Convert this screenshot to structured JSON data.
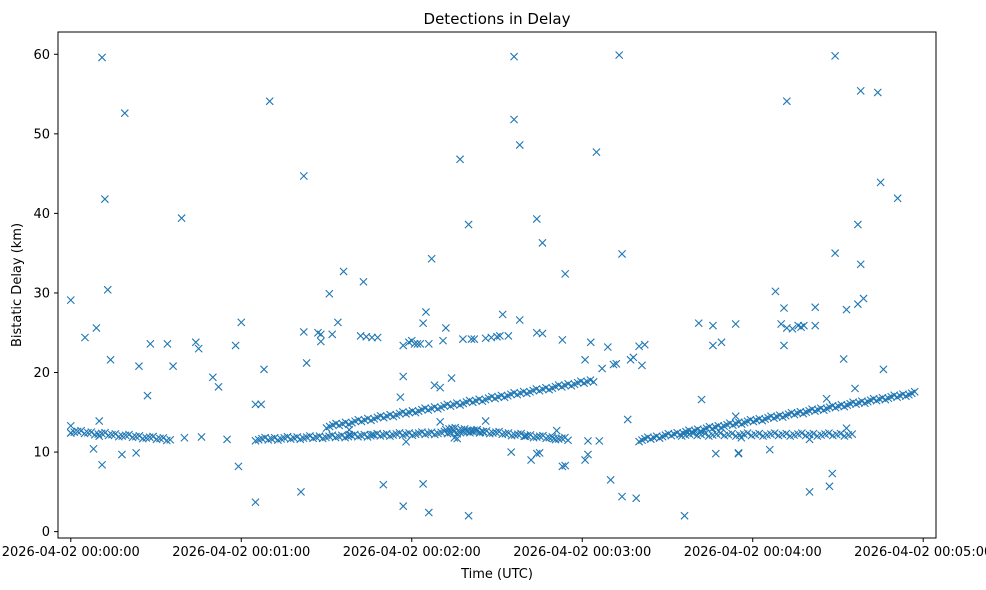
{
  "chart_data": {
    "type": "scatter",
    "title": "Detections in Delay",
    "xlabel": "Time (UTC)",
    "ylabel": "Bistatic Delay (km)",
    "x_unit": "seconds since 2026-04-02 00:00:00",
    "xlim": [
      -4.5,
      304.5
    ],
    "ylim": [
      -0.8,
      62.8
    ],
    "x_ticks": [
      {
        "value": 0,
        "label": "2026-04-02 00:00:00"
      },
      {
        "value": 60,
        "label": "2026-04-02 00:01:00"
      },
      {
        "value": 120,
        "label": "2026-04-02 00:02:00"
      },
      {
        "value": 180,
        "label": "2026-04-02 00:03:00"
      },
      {
        "value": 240,
        "label": "2026-04-02 00:04:00"
      },
      {
        "value": 300,
        "label": "2026-04-02 00:05:00"
      }
    ],
    "y_ticks": [
      {
        "value": 0,
        "label": "0"
      },
      {
        "value": 10,
        "label": "10"
      },
      {
        "value": 20,
        "label": "20"
      },
      {
        "value": 30,
        "label": "30"
      },
      {
        "value": 40,
        "label": "40"
      },
      {
        "value": 50,
        "label": "50"
      },
      {
        "value": 60,
        "label": "60"
      }
    ],
    "marker": "x",
    "color": "#1f77b4",
    "grid": false,
    "track_segments": [
      {
        "name": "track-a",
        "x": [
          0,
          35
        ],
        "y": [
          12.6,
          11.6
        ],
        "count": 30
      },
      {
        "name": "track-b",
        "x": [
          65,
          145
        ],
        "y": [
          11.6,
          12.6
        ],
        "count": 72
      },
      {
        "name": "track-c",
        "x": [
          90,
          184
        ],
        "y": [
          13.2,
          19.0
        ],
        "count": 85
      },
      {
        "name": "track-d",
        "x": [
          132,
          175
        ],
        "y": [
          13.0,
          11.6
        ],
        "count": 40
      },
      {
        "name": "track-e",
        "x": [
          200,
          297
        ],
        "y": [
          11.5,
          17.4
        ],
        "count": 95
      },
      {
        "name": "track-f",
        "x": [
          215,
          275
        ],
        "y": [
          12.2,
          12.2
        ],
        "count": 45
      }
    ],
    "points": [
      [
        0,
        29.1
      ],
      [
        0,
        13.3
      ],
      [
        0,
        12.4
      ],
      [
        5,
        24.4
      ],
      [
        8,
        10.4
      ],
      [
        9,
        25.6
      ],
      [
        10,
        13.9
      ],
      [
        10,
        12.0
      ],
      [
        11,
        59.6
      ],
      [
        11,
        8.4
      ],
      [
        12,
        41.8
      ],
      [
        13,
        30.4
      ],
      [
        14,
        21.6
      ],
      [
        18,
        9.7
      ],
      [
        19,
        52.6
      ],
      [
        23,
        9.9
      ],
      [
        24,
        20.8
      ],
      [
        27,
        17.1
      ],
      [
        28,
        23.6
      ],
      [
        34,
        23.6
      ],
      [
        36,
        20.8
      ],
      [
        39,
        39.4
      ],
      [
        40,
        11.8
      ],
      [
        44,
        23.8
      ],
      [
        45,
        23.0
      ],
      [
        46,
        11.9
      ],
      [
        50,
        19.4
      ],
      [
        52,
        18.2
      ],
      [
        55,
        11.6
      ],
      [
        58,
        23.4
      ],
      [
        59,
        8.2
      ],
      [
        60,
        26.3
      ],
      [
        65,
        16.0
      ],
      [
        65,
        3.7
      ],
      [
        67,
        16.0
      ],
      [
        68,
        20.4
      ],
      [
        70,
        54.1
      ],
      [
        81,
        5.0
      ],
      [
        82,
        25.1
      ],
      [
        82,
        44.7
      ],
      [
        83,
        21.2
      ],
      [
        87,
        25.0
      ],
      [
        88,
        24.8
      ],
      [
        88,
        23.9
      ],
      [
        91,
        29.9
      ],
      [
        92,
        24.8
      ],
      [
        94,
        26.3
      ],
      [
        96,
        32.7
      ],
      [
        98,
        12.8
      ],
      [
        98,
        12.2
      ],
      [
        102,
        24.6
      ],
      [
        103,
        31.4
      ],
      [
        104,
        24.5
      ],
      [
        106,
        24.4
      ],
      [
        106,
        12.2
      ],
      [
        108,
        24.4
      ],
      [
        110,
        5.9
      ],
      [
        116,
        16.9
      ],
      [
        117,
        19.5
      ],
      [
        117,
        23.4
      ],
      [
        117,
        3.2
      ],
      [
        118,
        11.3
      ],
      [
        119,
        23.8
      ],
      [
        120,
        24.0
      ],
      [
        121,
        23.6
      ],
      [
        122,
        23.6
      ],
      [
        123,
        23.6
      ],
      [
        124,
        6.0
      ],
      [
        124,
        26.2
      ],
      [
        125,
        27.6
      ],
      [
        126,
        23.6
      ],
      [
        126,
        2.4
      ],
      [
        127,
        34.3
      ],
      [
        128,
        18.4
      ],
      [
        130,
        13.8
      ],
      [
        130,
        18.1
      ],
      [
        131,
        24.0
      ],
      [
        132,
        25.6
      ],
      [
        134,
        19.3
      ],
      [
        135,
        11.8
      ],
      [
        136,
        11.7
      ],
      [
        137,
        46.8
      ],
      [
        138,
        24.2
      ],
      [
        140,
        38.6
      ],
      [
        140,
        2.0
      ],
      [
        141,
        24.2
      ],
      [
        142,
        24.2
      ],
      [
        146,
        13.9
      ],
      [
        146,
        24.3
      ],
      [
        148,
        24.4
      ],
      [
        150,
        24.5
      ],
      [
        151,
        24.6
      ],
      [
        152,
        27.3
      ],
      [
        154,
        24.6
      ],
      [
        155,
        10.0
      ],
      [
        156,
        59.7
      ],
      [
        156,
        51.8
      ],
      [
        158,
        48.6
      ],
      [
        158,
        26.6
      ],
      [
        160,
        12.0
      ],
      [
        162,
        9.0
      ],
      [
        164,
        9.8
      ],
      [
        164,
        25.0
      ],
      [
        164,
        39.3
      ],
      [
        165,
        9.9
      ],
      [
        166,
        36.3
      ],
      [
        166,
        24.9
      ],
      [
        170,
        11.7
      ],
      [
        171,
        12.7
      ],
      [
        173,
        24.1
      ],
      [
        173,
        8.2
      ],
      [
        174,
        8.3
      ],
      [
        174,
        32.4
      ],
      [
        181,
        21.6
      ],
      [
        181,
        9.0
      ],
      [
        182,
        9.7
      ],
      [
        182,
        11.4
      ],
      [
        183,
        23.8
      ],
      [
        185,
        47.7
      ],
      [
        186,
        11.4
      ],
      [
        187,
        20.5
      ],
      [
        189,
        23.2
      ],
      [
        190,
        6.5
      ],
      [
        191,
        21.0
      ],
      [
        192,
        21.1
      ],
      [
        193,
        59.9
      ],
      [
        194,
        4.4
      ],
      [
        194,
        34.9
      ],
      [
        196,
        14.1
      ],
      [
        197,
        21.6
      ],
      [
        198,
        21.9
      ],
      [
        199,
        4.2
      ],
      [
        200,
        23.3
      ],
      [
        201,
        20.9
      ],
      [
        202,
        23.5
      ],
      [
        216,
        2.0
      ],
      [
        221,
        26.2
      ],
      [
        222,
        16.6
      ],
      [
        226,
        25.9
      ],
      [
        226,
        23.4
      ],
      [
        227,
        9.8
      ],
      [
        229,
        23.8
      ],
      [
        234,
        14.5
      ],
      [
        234,
        26.1
      ],
      [
        235,
        9.9
      ],
      [
        235,
        9.8
      ],
      [
        236,
        11.8
      ],
      [
        246,
        10.3
      ],
      [
        248,
        30.2
      ],
      [
        250,
        26.1
      ],
      [
        251,
        28.1
      ],
      [
        251,
        23.4
      ],
      [
        252,
        54.1
      ],
      [
        252,
        25.6
      ],
      [
        254,
        25.5
      ],
      [
        256,
        25.9
      ],
      [
        257,
        25.7
      ],
      [
        258,
        25.9
      ],
      [
        260,
        11.6
      ],
      [
        260,
        5.0
      ],
      [
        262,
        28.2
      ],
      [
        262,
        25.9
      ],
      [
        266,
        16.7
      ],
      [
        267,
        5.7
      ],
      [
        268,
        7.3
      ],
      [
        269,
        59.8
      ],
      [
        269,
        35.0
      ],
      [
        272,
        21.7
      ],
      [
        273,
        13.0
      ],
      [
        273,
        27.9
      ],
      [
        276,
        18.0
      ],
      [
        277,
        38.6
      ],
      [
        277,
        28.6
      ],
      [
        278,
        55.4
      ],
      [
        278,
        33.6
      ],
      [
        279,
        29.3
      ],
      [
        284,
        55.2
      ],
      [
        285,
        43.9
      ],
      [
        286,
        20.4
      ],
      [
        291,
        41.9
      ]
    ]
  }
}
